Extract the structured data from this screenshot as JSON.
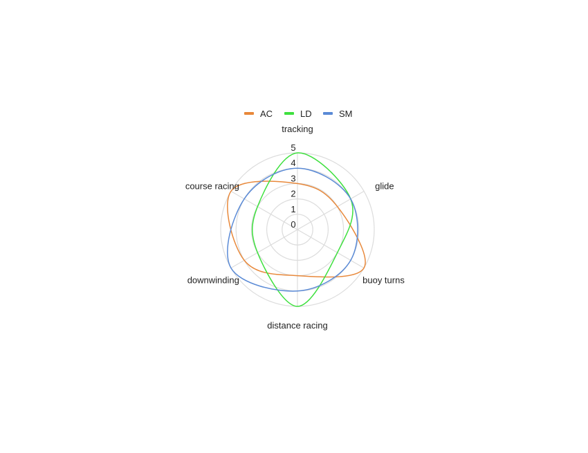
{
  "chart_data": {
    "type": "radar",
    "axes": [
      "tracking",
      "glide",
      "buoy turns",
      "distance racing",
      "downwinding",
      "course racing"
    ],
    "rlim": [
      0,
      5
    ],
    "ticks": [
      "0",
      "1",
      "2",
      "3",
      "4",
      "5"
    ],
    "grid": true,
    "legend_position": "top",
    "series": [
      {
        "name": "AC",
        "color": "#e8883a",
        "values": [
          3,
          3,
          5,
          3,
          4,
          5
        ]
      },
      {
        "name": "LD",
        "color": "#3ee03e",
        "values": [
          5,
          4,
          3,
          5,
          3,
          3
        ]
      },
      {
        "name": "SM",
        "color": "#5a8ad6",
        "values": [
          4,
          4,
          4,
          4,
          5,
          4
        ]
      }
    ]
  }
}
